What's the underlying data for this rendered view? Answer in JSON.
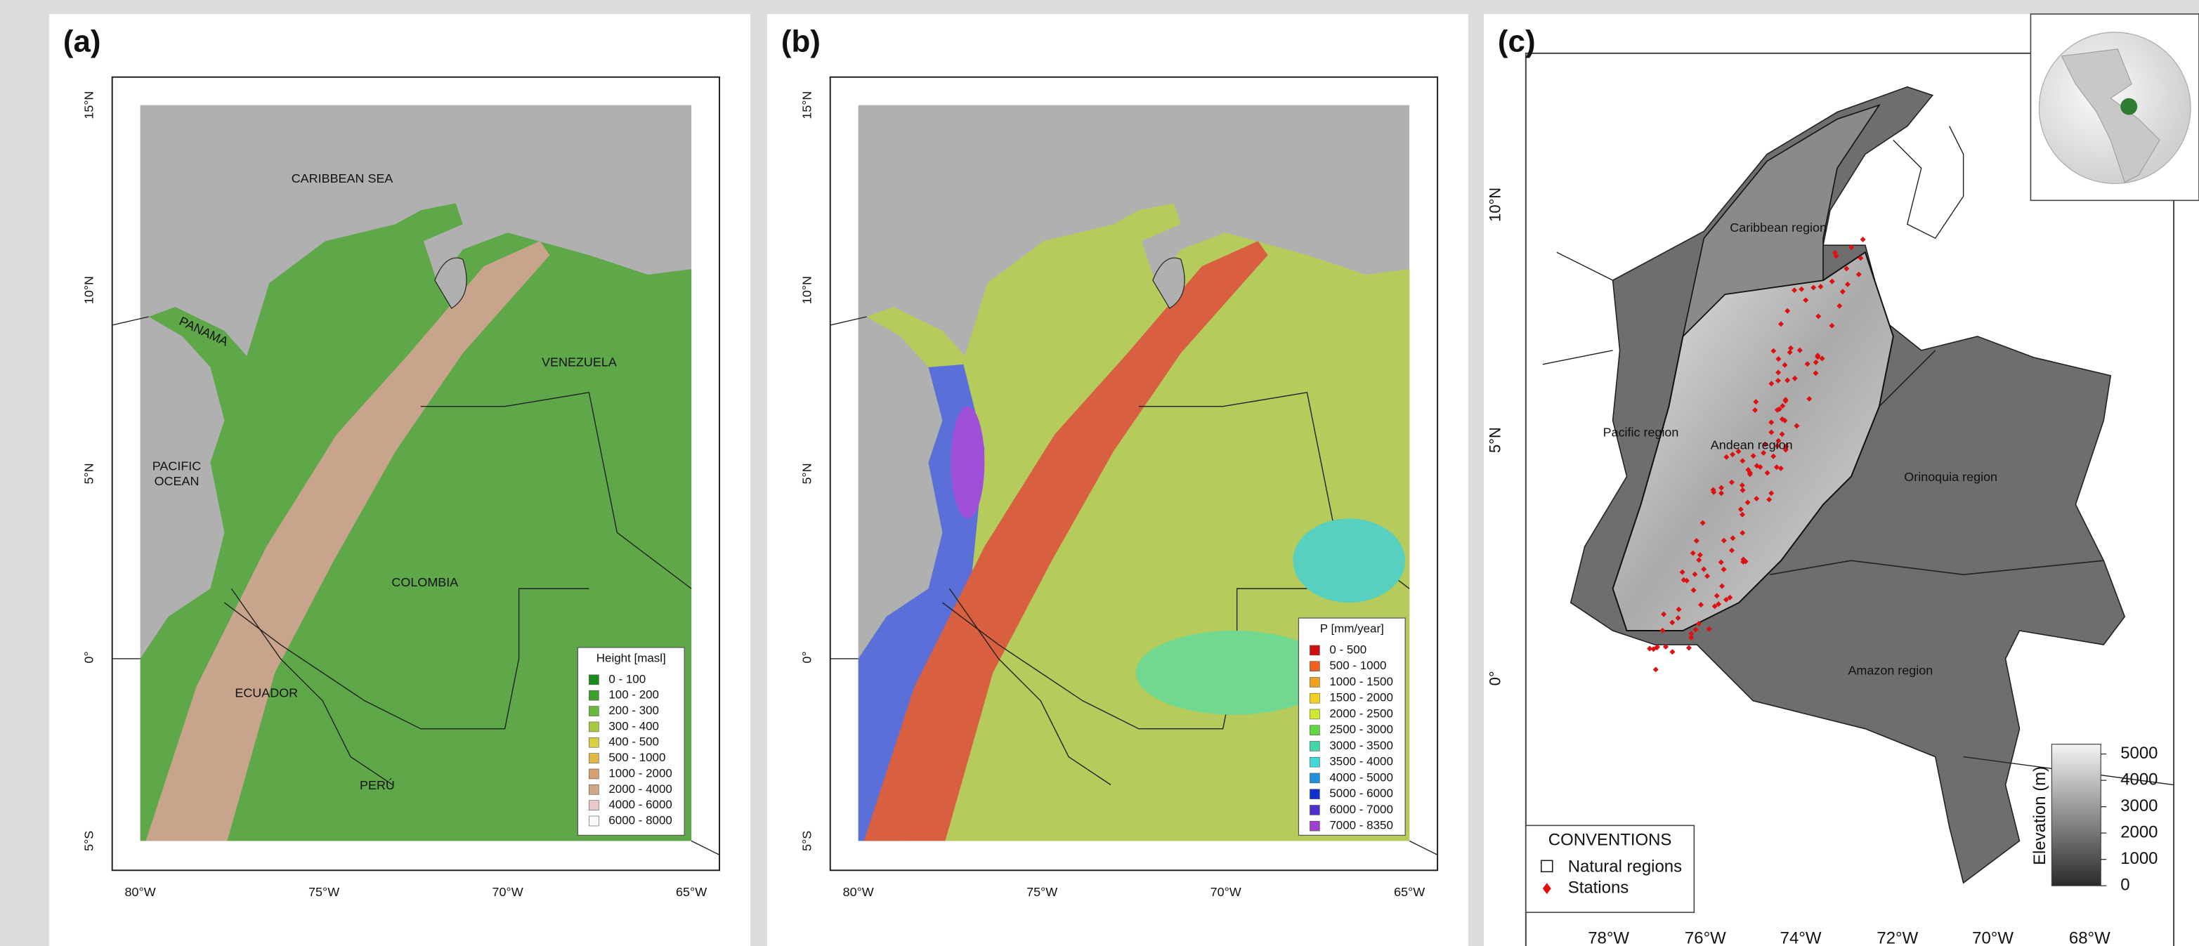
{
  "panel_a": {
    "label": "(a)",
    "lat_labels": [
      "15°N",
      "10°N",
      "5°N",
      "0°",
      "5°S"
    ],
    "lon_labels": [
      "80°W",
      "75°W",
      "70°W",
      "65°W"
    ],
    "places": [
      {
        "lines": [
          "CARIBBEAN SEA"
        ]
      },
      {
        "lines": [
          "PANAMA"
        ]
      },
      {
        "lines": [
          "VENEZUELA"
        ]
      },
      {
        "lines": [
          "PACIFIC",
          "OCEAN"
        ]
      },
      {
        "lines": [
          "COLOMBIA"
        ]
      },
      {
        "lines": [
          "ECUADOR"
        ]
      },
      {
        "lines": [
          "PERÚ"
        ]
      }
    ],
    "legend": {
      "title": "Height [masl]",
      "items": [
        "0 - 100",
        "100 - 200",
        "200 - 300",
        "300 - 400",
        "400 - 500",
        "500 - 1000",
        "1000 - 2000",
        "2000 - 4000",
        "4000 - 6000",
        "6000 - 8000"
      ]
    }
  },
  "panel_b": {
    "label": "(b)",
    "lat_labels": [
      "15°N",
      "10°N",
      "5°N",
      "0°",
      "5°S"
    ],
    "lon_labels": [
      "80°W",
      "75°W",
      "70°W",
      "65°W"
    ],
    "legend": {
      "title": "P [mm/year]",
      "items": [
        "0 - 500",
        "500 - 1000",
        "1000 - 1500",
        "1500 - 2000",
        "2000 - 2500",
        "2500 - 3000",
        "3000 - 3500",
        "3500 - 4000",
        "4000 - 5000",
        "5000 - 6000",
        "6000 - 7000",
        "7000 - 8350"
      ]
    }
  },
  "panel_c": {
    "label": "(c)",
    "lat_labels": [
      "10°N",
      "5°N",
      "0°"
    ],
    "lon_labels": [
      "78°W",
      "76°W",
      "74°W",
      "72°W",
      "70°W",
      "68°W"
    ],
    "regions": [
      "Caribbean region",
      "Pacific region",
      "Andean region",
      "Orinoquia region",
      "Amazon region"
    ],
    "colorbar": {
      "title": "Elevation (m)",
      "ticks": [
        5000,
        4000,
        3000,
        2000,
        1000,
        0
      ]
    },
    "conventions": {
      "title": "CONVENTIONS",
      "items": [
        "Natural regions",
        "Stations"
      ]
    }
  }
}
